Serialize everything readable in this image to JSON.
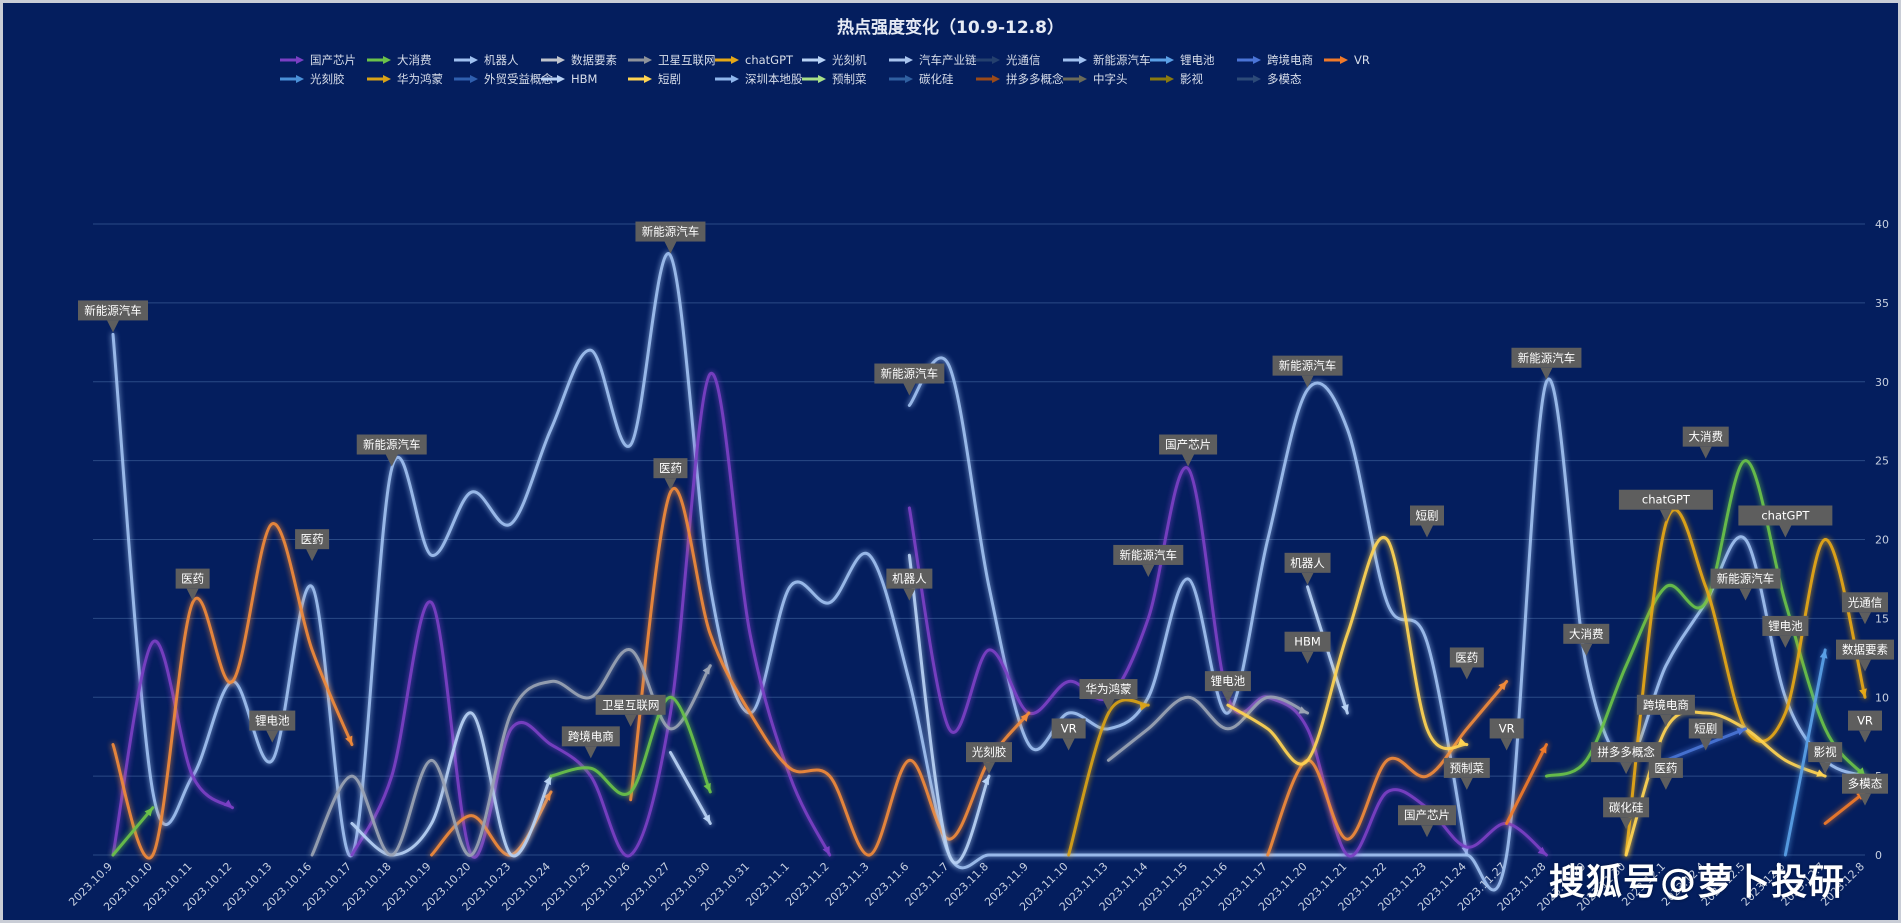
{
  "chart_data": {
    "type": "line",
    "title": "热点强度变化（10.9-12.8）",
    "ylim": [
      0,
      40
    ],
    "yticks": [
      0,
      5,
      10,
      15,
      20,
      25,
      30,
      35,
      40
    ],
    "grid": true,
    "legend": "top-center",
    "categories": [
      "2023.10.9",
      "2023.10.10",
      "2023.10.11",
      "2023.10.12",
      "2023.10.13",
      "2023.10.16",
      "2023.10.17",
      "2023.10.18",
      "2023.10.19",
      "2023.10.20",
      "2023.10.23",
      "2023.10.24",
      "2023.10.25",
      "2023.10.26",
      "2023.10.27",
      "2023.10.30",
      "2023.10.31",
      "2023.11.1",
      "2023.11.2",
      "2023.11.3",
      "2023.11.6",
      "2023.11.7",
      "2023.11.8",
      "2023.11.9",
      "2023.11.10",
      "2023.11.13",
      "2023.11.14",
      "2023.11.15",
      "2023.11.16",
      "2023.11.17",
      "2023.11.20",
      "2023.11.21",
      "2023.11.22",
      "2023.11.23",
      "2023.11.24",
      "2023.11.27",
      "2023.11.28",
      "2023.11.29",
      "2023.11.30",
      "2023.12.1",
      "2023.12.4",
      "2023.12.5",
      "2023.12.6",
      "2023.12.7",
      "2023.12.8"
    ],
    "legend_entries": [
      "国产芯片",
      "大消费",
      "机器人",
      "数据要素",
      "卫星互联网",
      "chatGPT",
      "光刻机",
      "汽车产业链",
      "光通信",
      "新能源汽车",
      "锂电池",
      "跨境电商",
      "VR",
      "光刻胶",
      "华为鸿蒙",
      "外贸受益概念",
      "HBM",
      "短剧",
      "深圳本地股",
      "预制菜",
      "碳化硅",
      "拼多多概念",
      "中字头",
      "影视",
      "多模态"
    ],
    "series": [
      {
        "name": "新能源汽车",
        "color": "#9fc0f0",
        "values": [
          33,
          4,
          5,
          11,
          6,
          17,
          0,
          24.5,
          19,
          23,
          21,
          27,
          32,
          26,
          38,
          17,
          9,
          17,
          16,
          19,
          11,
          0,
          0,
          0,
          0,
          0,
          0,
          0,
          0,
          0,
          0,
          0,
          0,
          0,
          0,
          0,
          30,
          12,
          6,
          12,
          16,
          20,
          10,
          6,
          5
        ]
      },
      {
        "name": "新能源汽车",
        "color": "#9fc0f0",
        "values": [
          null,
          null,
          null,
          null,
          null,
          null,
          null,
          null,
          null,
          null,
          null,
          null,
          null,
          null,
          null,
          null,
          null,
          null,
          null,
          null,
          28.5,
          31,
          17,
          7,
          9,
          8,
          10,
          17.5,
          9,
          20,
          29.5,
          27,
          16,
          13.5,
          0,
          null,
          null,
          null,
          null,
          null,
          null,
          null,
          null,
          null,
          null
        ]
      },
      {
        "name": "国产芯片",
        "color": "#7a3fc4",
        "values": [
          0,
          13.5,
          5,
          3,
          null,
          null,
          0,
          5,
          16,
          0,
          8,
          7,
          5,
          0,
          9,
          30.5,
          14,
          5,
          0,
          null,
          22,
          8,
          13,
          9,
          11,
          10,
          15,
          24.5,
          10,
          10,
          8,
          0,
          4,
          3,
          0.5,
          2,
          0,
          null,
          null,
          null,
          null,
          null,
          null,
          null,
          null
        ]
      },
      {
        "name": "医药",
        "color": "#f08a3a",
        "values": [
          7,
          0,
          16,
          11,
          21,
          13,
          7,
          null,
          0,
          2.5,
          0,
          4,
          null,
          3.5,
          23,
          14,
          9,
          5.5,
          5,
          0,
          6,
          1,
          6,
          9,
          null,
          null,
          null,
          null,
          null,
          0,
          6,
          1,
          6,
          5,
          8,
          11,
          null,
          null,
          null,
          null,
          null,
          null,
          null,
          null,
          null
        ]
      },
      {
        "name": "机器人",
        "color": "#b8d2f5",
        "values": [
          null,
          null,
          null,
          null,
          null,
          null,
          2,
          0,
          2,
          9,
          0,
          5,
          null,
          null,
          6.5,
          2,
          null,
          null,
          null,
          null,
          19,
          0,
          5,
          null,
          null,
          null,
          null,
          null,
          null,
          null,
          17,
          9,
          null,
          null,
          null,
          null,
          null,
          null,
          null,
          null,
          null,
          null,
          null,
          null,
          null
        ]
      },
      {
        "name": "数据要素",
        "color": "#9aa3b4",
        "values": [
          null,
          null,
          null,
          null,
          null,
          0,
          5,
          0,
          6,
          0,
          9,
          11,
          10,
          13,
          8,
          12,
          null,
          null,
          null,
          null,
          null,
          null,
          null,
          null,
          null,
          6,
          8,
          10,
          8,
          10,
          9,
          null,
          null,
          null,
          null,
          null,
          null,
          null,
          null,
          null,
          null,
          null,
          null,
          null,
          11.5
        ]
      },
      {
        "name": "大消费",
        "color": "#6bc24a",
        "values": [
          0,
          3,
          null,
          null,
          null,
          null,
          null,
          null,
          null,
          null,
          null,
          5,
          5.5,
          4,
          10,
          4,
          null,
          null,
          null,
          null,
          null,
          null,
          null,
          null,
          null,
          null,
          null,
          null,
          null,
          null,
          null,
          null,
          null,
          null,
          null,
          null,
          5,
          6,
          12,
          17,
          16,
          25,
          16,
          8,
          5
        ]
      },
      {
        "name": "chatGPT",
        "color": "#e6a817",
        "values": [
          null,
          null,
          null,
          null,
          null,
          null,
          null,
          null,
          null,
          null,
          null,
          null,
          null,
          null,
          null,
          null,
          null,
          null,
          null,
          null,
          null,
          null,
          null,
          null,
          null,
          null,
          null,
          null,
          null,
          null,
          null,
          null,
          null,
          null,
          null,
          null,
          null,
          null,
          0,
          21,
          17,
          8,
          9,
          20,
          10
        ]
      },
      {
        "name": "短剧",
        "color": "#ffd452",
        "values": [
          null,
          null,
          null,
          null,
          null,
          null,
          null,
          null,
          null,
          null,
          null,
          null,
          null,
          null,
          null,
          null,
          null,
          null,
          null,
          null,
          null,
          null,
          null,
          null,
          null,
          null,
          null,
          null,
          9.5,
          8,
          6,
          14,
          20,
          8,
          7,
          null,
          null,
          null,
          0,
          8,
          9,
          8,
          6,
          5,
          null
        ]
      },
      {
        "name": "华为鸿蒙",
        "color": "#d8a218",
        "values": [
          null,
          null,
          null,
          null,
          null,
          null,
          null,
          null,
          null,
          null,
          null,
          null,
          null,
          null,
          null,
          null,
          null,
          null,
          null,
          null,
          null,
          null,
          null,
          null,
          0,
          9,
          9.5,
          null,
          null,
          null,
          null,
          null,
          null,
          null,
          null,
          null,
          null,
          null,
          null,
          null,
          null,
          null,
          null,
          null,
          null
        ]
      },
      {
        "name": "锂电池",
        "color": "#5aa0e6",
        "values": [
          null,
          null,
          null,
          null,
          null,
          null,
          null,
          null,
          null,
          null,
          null,
          null,
          null,
          null,
          null,
          null,
          null,
          null,
          null,
          null,
          null,
          null,
          null,
          null,
          null,
          null,
          null,
          null,
          null,
          null,
          null,
          null,
          null,
          null,
          null,
          null,
          null,
          null,
          null,
          null,
          null,
          null,
          0,
          13,
          null
        ]
      },
      {
        "name": "跨境电商",
        "color": "#4a74d6",
        "values": [
          null,
          null,
          null,
          null,
          null,
          null,
          null,
          null,
          null,
          null,
          null,
          null,
          null,
          null,
          null,
          null,
          null,
          null,
          null,
          null,
          null,
          null,
          null,
          null,
          null,
          null,
          null,
          null,
          null,
          null,
          null,
          null,
          null,
          null,
          null,
          null,
          null,
          null,
          null,
          6,
          7,
          8,
          null,
          null,
          null
        ]
      },
      {
        "name": "VR",
        "color": "#f07a2a",
        "values": [
          null,
          null,
          null,
          null,
          null,
          null,
          null,
          null,
          null,
          null,
          null,
          null,
          null,
          null,
          null,
          null,
          null,
          null,
          null,
          null,
          null,
          null,
          null,
          null,
          null,
          null,
          null,
          null,
          null,
          null,
          null,
          null,
          null,
          null,
          null,
          2,
          7,
          null,
          null,
          null,
          null,
          null,
          null,
          2,
          4
        ]
      }
    ],
    "annotations": [
      {
        "label": "新能源汽车",
        "x": "2023.10.9",
        "y": 33
      },
      {
        "label": "医药",
        "x": "2023.10.11",
        "y": 16
      },
      {
        "label": "锂电池",
        "x": "2023.10.13",
        "y": 7
      },
      {
        "label": "医药",
        "x": "2023.10.16",
        "y": 18.5
      },
      {
        "label": "新能源汽车",
        "x": "2023.10.18",
        "y": 24.5
      },
      {
        "label": "卫星互联网",
        "x": "2023.10.26",
        "y": 8
      },
      {
        "label": "跨境电商",
        "x": "2023.10.25",
        "y": 6
      },
      {
        "label": "新能源汽车",
        "x": "2023.10.27",
        "y": 38
      },
      {
        "label": "医药",
        "x": "2023.10.27",
        "y": 23
      },
      {
        "label": "机器人",
        "x": "2023.11.6",
        "y": 16
      },
      {
        "label": "新能源汽车",
        "x": "2023.11.6",
        "y": 29
      },
      {
        "label": "光刻胶",
        "x": "2023.11.8",
        "y": 5
      },
      {
        "label": "VR",
        "x": "2023.11.10",
        "y": 6.5
      },
      {
        "label": "华为鸿蒙",
        "x": "2023.11.13",
        "y": 9
      },
      {
        "label": "新能源汽车",
        "x": "2023.11.14",
        "y": 17.5
      },
      {
        "label": "国产芯片",
        "x": "2023.11.15",
        "y": 24.5
      },
      {
        "label": "锂电池",
        "x": "2023.11.16",
        "y": 9.5
      },
      {
        "label": "新能源汽车",
        "x": "2023.11.20",
        "y": 29.5
      },
      {
        "label": "机器人",
        "x": "2023.11.20",
        "y": 17
      },
      {
        "label": "HBM",
        "x": "2023.11.20",
        "y": 12
      },
      {
        "label": "短剧",
        "x": "2023.11.23",
        "y": 20
      },
      {
        "label": "国产芯片",
        "x": "2023.11.23",
        "y": 1
      },
      {
        "label": "医药",
        "x": "2023.11.24",
        "y": 11
      },
      {
        "label": "预制菜",
        "x": "2023.11.24",
        "y": 4
      },
      {
        "label": "新能源汽车",
        "x": "2023.11.28",
        "y": 30
      },
      {
        "label": "VR",
        "x": "2023.11.27",
        "y": 6.5
      },
      {
        "label": "大消费",
        "x": "2023.11.29",
        "y": 12.5
      },
      {
        "label": "拼多多概念",
        "x": "2023.11.30",
        "y": 5
      },
      {
        "label": "碳化硅",
        "x": "2023.11.30",
        "y": 1.5
      },
      {
        "label": "医药",
        "x": "2023.12.1",
        "y": 4
      },
      {
        "label": "chatGPT",
        "x": "2023.12.1",
        "y": 21
      },
      {
        "label": "跨境电商",
        "x": "2023.12.1",
        "y": 8
      },
      {
        "label": "大消费",
        "x": "2023.12.4",
        "y": 25
      },
      {
        "label": "短剧",
        "x": "2023.12.4",
        "y": 6.5
      },
      {
        "label": "新能源汽车",
        "x": "2023.12.5",
        "y": 16
      },
      {
        "label": "chatGPT",
        "x": "2023.12.6",
        "y": 20
      },
      {
        "label": "锂电池",
        "x": "2023.12.6",
        "y": 13
      },
      {
        "label": "光通信",
        "x": "2023.12.8",
        "y": 14.5
      },
      {
        "label": "数据要素",
        "x": "2023.12.8",
        "y": 11.5
      },
      {
        "label": "VR",
        "x": "2023.12.8",
        "y": 7
      },
      {
        "label": "影视",
        "x": "2023.12.7",
        "y": 5
      },
      {
        "label": "多模态",
        "x": "2023.12.8",
        "y": 3
      }
    ]
  },
  "legend_colors": [
    "#7a3fc4",
    "#6bc24a",
    "#9fc0f0",
    "#c0c4cc",
    "#8e939b",
    "#e6a817",
    "#b8d2f5",
    "#a8c4ee",
    "#24406e",
    "#9fc0f0",
    "#5aa0e6",
    "#4a74d6",
    "#f07a2a",
    "#4a90d8",
    "#d8a218",
    "#2f5fae",
    "#b8d2f5",
    "#ffd452",
    "#8fb6ec",
    "#a8e088",
    "#2f5fa0",
    "#9a4a1a",
    "#6b6b5a",
    "#8a7a10",
    "#2c4a78"
  ],
  "watermark": "搜狐号@萝卜投研"
}
